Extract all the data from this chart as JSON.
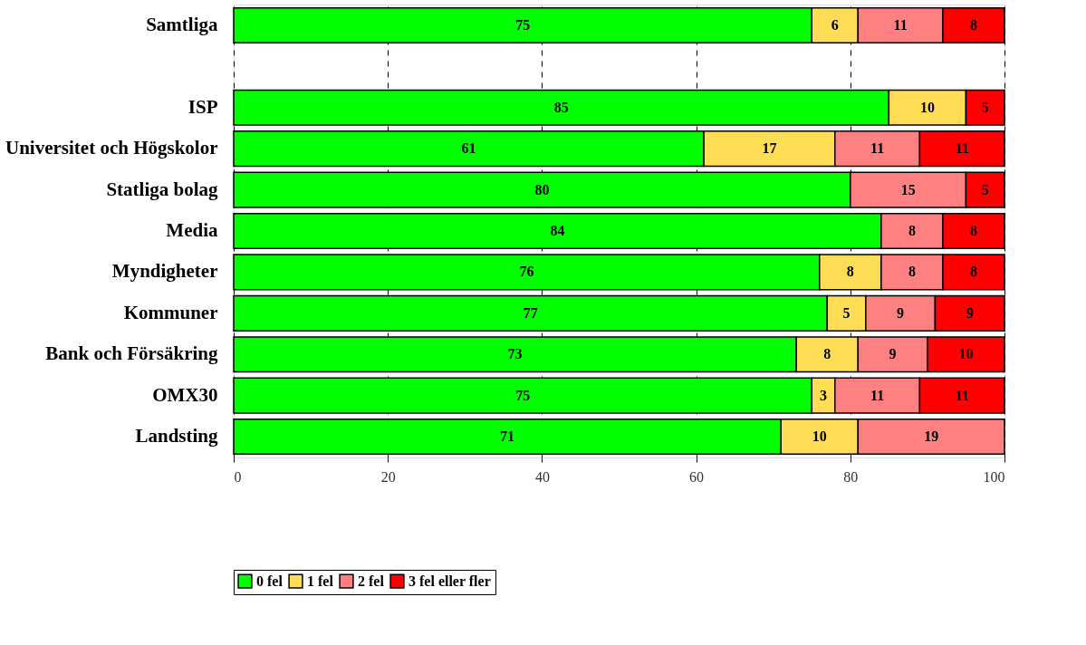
{
  "chart_data": {
    "type": "bar",
    "orientation": "horizontal",
    "stacked": true,
    "data_labels": true,
    "grid": "x",
    "legend": "bottom",
    "categories": [
      "Samtliga",
      null,
      "ISP",
      "Universitet och Högskolor",
      "Statliga bolag",
      "Media",
      "Myndigheter",
      "Kommuner",
      "Bank och Försäkring",
      "OMX30",
      "Landsting"
    ],
    "series": [
      {
        "name": "0 fel",
        "color": "#00ff00",
        "values": [
          75,
          null,
          85,
          61,
          80,
          84,
          76,
          77,
          73,
          75,
          71
        ]
      },
      {
        "name": "1 fel",
        "color": "#ffdd55",
        "values": [
          6,
          null,
          10,
          17,
          null,
          null,
          8,
          5,
          8,
          3,
          10
        ]
      },
      {
        "name": "2 fel",
        "color": "#ff8080",
        "values": [
          11,
          null,
          null,
          11,
          15,
          8,
          8,
          9,
          9,
          11,
          19
        ]
      },
      {
        "name": "3 fel eller fler",
        "color": "#ff0000",
        "values": [
          8,
          null,
          5,
          11,
          5,
          8,
          8,
          9,
          10,
          11,
          null
        ]
      }
    ],
    "xlim": [
      0,
      100
    ],
    "xticks": [
      0,
      20,
      40,
      60,
      80,
      100
    ]
  }
}
